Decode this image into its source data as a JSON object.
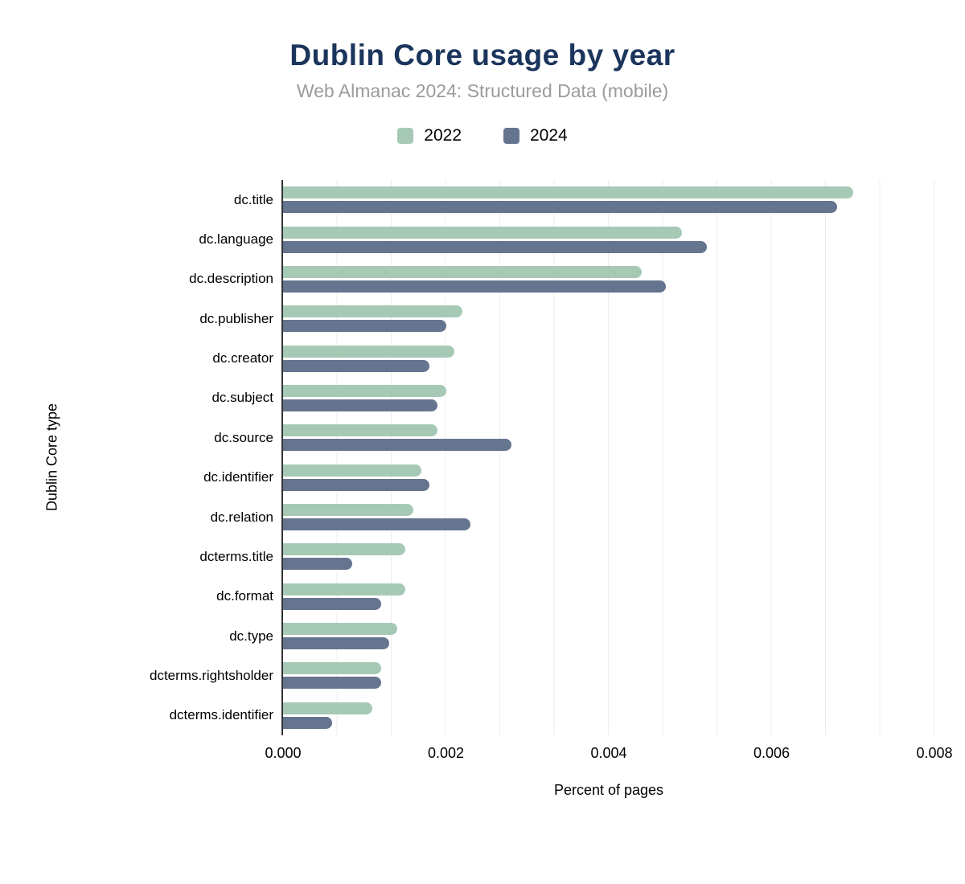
{
  "title": "Dublin Core usage by year",
  "subtitle": "Web Almanac 2024: Structured Data (mobile)",
  "legend": {
    "items": [
      {
        "label": "2022",
        "color": "#a6c9b5"
      },
      {
        "label": "2024",
        "color": "#65748f"
      }
    ]
  },
  "colors": {
    "title_navy": "#1b355c",
    "subtitle_gray": "#9b9b9b",
    "series_2022_green": "#a6c9b5",
    "series_2024_blue": "#65748f",
    "gridline": "#ededed",
    "axis_line": "#333333"
  },
  "chart_data": {
    "type": "bar",
    "orientation": "horizontal",
    "title": "Dublin Core usage by year",
    "subtitle": "Web Almanac 2024: Structured Data (mobile)",
    "xlabel": "Percent of pages",
    "ylabel": "Dublin Core type",
    "xlim": [
      0,
      0.008
    ],
    "x_ticks": [
      0,
      0.002,
      0.004,
      0.006,
      0.008
    ],
    "x_tick_labels": [
      "0.000",
      "0.002",
      "0.004",
      "0.006",
      "0.008"
    ],
    "grid": "vertical, minor lines at thirds of major interval",
    "legend_position": "top-center",
    "categories": [
      "dc.title",
      "dc.language",
      "dc.description",
      "dc.publisher",
      "dc.creator",
      "dc.subject",
      "dc.source",
      "dc.identifier",
      "dc.relation",
      "dcterms.title",
      "dc.format",
      "dc.type",
      "dcterms.rightsholder",
      "dcterms.identifier"
    ],
    "series": [
      {
        "name": "2022",
        "color": "#a6c9b5",
        "values": [
          0.007,
          0.0049,
          0.0044,
          0.0022,
          0.0021,
          0.002,
          0.0019,
          0.0017,
          0.0016,
          0.0015,
          0.0015,
          0.0014,
          0.0012,
          0.0011
        ]
      },
      {
        "name": "2024",
        "color": "#65748f",
        "values": [
          0.0068,
          0.0052,
          0.0047,
          0.002,
          0.0018,
          0.0019,
          0.0028,
          0.0018,
          0.0023,
          0.00085,
          0.0012,
          0.0013,
          0.0012,
          0.0006
        ]
      }
    ]
  }
}
